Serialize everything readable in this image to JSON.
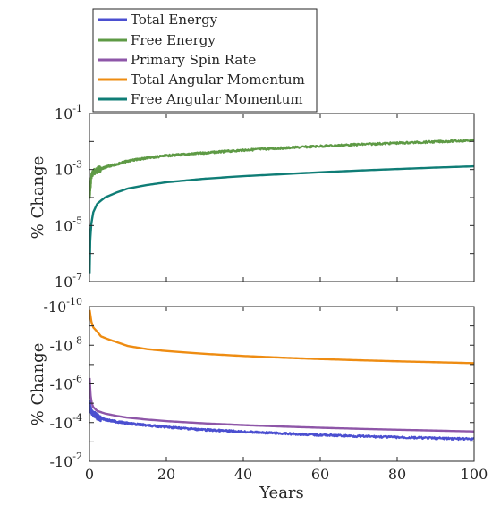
{
  "legend": {
    "entries": [
      {
        "label": "Total Energy",
        "color": "#4b4fd0"
      },
      {
        "label": "Free Energy",
        "color": "#5e9a45"
      },
      {
        "label": "Primary Spin Rate",
        "color": "#8e56a8"
      },
      {
        "label": "Total Angular Momentum",
        "color": "#ee8c12"
      },
      {
        "label": "Free Angular Momentum",
        "color": "#0f7d76"
      }
    ]
  },
  "chart_data": [
    {
      "type": "line",
      "panel": "top",
      "ylabel": "% Change",
      "xlabel": "",
      "xlim": [
        0,
        100
      ],
      "ylim": [
        1e-07,
        0.1
      ],
      "yscale": "log",
      "ytick_labels": [
        {
          "base": "10",
          "exp": "-1"
        },
        {
          "base": "10",
          "exp": "-3"
        },
        {
          "base": "10",
          "exp": "-5"
        },
        {
          "base": "10",
          "exp": "-7"
        }
      ],
      "series": [
        {
          "name": "Free Energy",
          "color": "#5e9a45",
          "x": [
            0.05,
            0.5,
            1,
            2,
            5,
            10,
            15,
            20,
            30,
            40,
            50,
            60,
            70,
            80,
            90,
            100
          ],
          "y": [
            0.0001,
            0.0006,
            0.0008,
            0.00095,
            0.0013,
            0.002,
            0.0026,
            0.0031,
            0.0039,
            0.0049,
            0.0058,
            0.0068,
            0.0078,
            0.0088,
            0.0098,
            0.011
          ],
          "noisy": true
        },
        {
          "name": "Free Angular Momentum",
          "color": "#0f7d76",
          "x": [
            0.05,
            0.2,
            0.5,
            1,
            2,
            4,
            7,
            10,
            15,
            20,
            30,
            40,
            50,
            60,
            70,
            80,
            90,
            100
          ],
          "y": [
            2e-07,
            3e-06,
            1.2e-05,
            3e-05,
            6e-05,
            0.0001,
            0.00015,
            0.00021,
            0.00028,
            0.00035,
            0.00047,
            0.00058,
            0.00068,
            0.0008,
            0.00092,
            0.00104,
            0.00117,
            0.0013
          ],
          "noisy": false
        }
      ]
    },
    {
      "type": "line",
      "panel": "bottom",
      "ylabel": "% Change",
      "xlabel": "Years",
      "xlim": [
        0,
        100
      ],
      "ylim": [
        -1e-10,
        -0.01
      ],
      "yscale": "log (negative values, magnitude increasing downward)",
      "xticks": [
        "0",
        "20",
        "40",
        "60",
        "80",
        "100"
      ],
      "ytick_labels": [
        {
          "base": "-10",
          "exp": "-10"
        },
        {
          "base": "-10",
          "exp": "-8"
        },
        {
          "base": "-10",
          "exp": "-6"
        },
        {
          "base": "-10",
          "exp": "-4"
        },
        {
          "base": "-10",
          "exp": "-2"
        }
      ],
      "series": [
        {
          "name": "Total Angular Momentum",
          "color": "#ee8c12",
          "x": [
            0.05,
            0.5,
            1,
            2,
            3,
            5,
            10,
            15,
            20,
            30,
            40,
            50,
            60,
            70,
            80,
            90,
            100
          ],
          "y": [
            -1.5e-10,
            -6e-10,
            -1.2e-09,
            -2e-09,
            -3.5e-09,
            -5e-09,
            -1.1e-08,
            -1.6e-08,
            -2e-08,
            -2.8e-08,
            -3.6e-08,
            -4.4e-08,
            -5.2e-08,
            -6e-08,
            -6.8e-08,
            -7.6e-08,
            -8.5e-08
          ],
          "noisy": false
        },
        {
          "name": "Primary Spin Rate",
          "color": "#8e56a8",
          "x": [
            0.05,
            0.3,
            0.6,
            1,
            2,
            4,
            7,
            10,
            15,
            20,
            30,
            40,
            50,
            60,
            70,
            80,
            90,
            100
          ],
          "y": [
            -5e-07,
            -4e-06,
            -1e-05,
            -1.6e-05,
            -2.5e-05,
            -3.4e-05,
            -4.5e-05,
            -5.6e-05,
            -7e-05,
            -8.4e-05,
            -0.00011,
            -0.000135,
            -0.00016,
            -0.000185,
            -0.00021,
            -0.000235,
            -0.00026,
            -0.00029
          ],
          "noisy": false
        },
        {
          "name": "Total Energy",
          "color": "#4b4fd0",
          "x": [
            0.05,
            0.3,
            0.6,
            1,
            2,
            4,
            7,
            10,
            15,
            20,
            30,
            40,
            50,
            60,
            70,
            80,
            90,
            100
          ],
          "y": [
            -1e-05,
            -2e-05,
            -3e-05,
            -3.5e-05,
            -5e-05,
            -7e-05,
            -9e-05,
            -0.00011,
            -0.00014,
            -0.00017,
            -0.00024,
            -0.0003,
            -0.00037,
            -0.00044,
            -0.00051,
            -0.00058,
            -0.00065,
            -0.00072
          ],
          "noisy": true
        }
      ]
    }
  ]
}
